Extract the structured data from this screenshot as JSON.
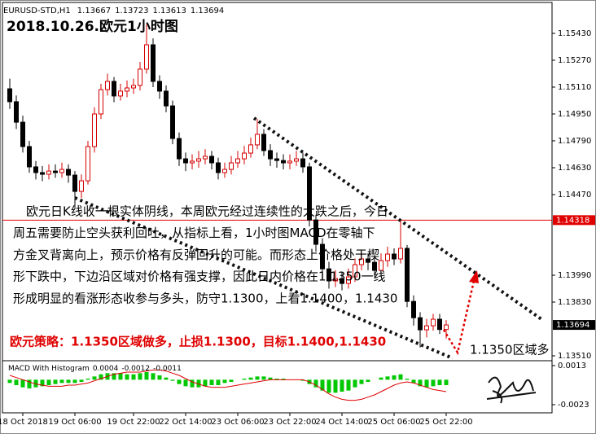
{
  "chart_data": [
    {
      "type": "candlestick",
      "symbol": "EURUSD-STD,H1",
      "title": "2018.10.26.欧元1小时图",
      "annotation_lines": [
        "欧元日K线收一根实体阴线，本周欧元经过连续性的大跌之后，今日",
        "周五需要防止空头获利回吐，从指标上看，1小时图MACD在零轴下",
        "方金叉背离向上，预示价格有反弹回升的可能。而形态上价格处于楔",
        "形下跌中，下边沿区域对价格有强支撑，因此日内价格在1.1350一线",
        "形成明显的看涨形态收参与多头，防守1.1300，上看1.1400，1.1430"
      ],
      "strategy": "欧元策略：1.1350区域做多，止损1.1300，目标1.1400,1.1430",
      "callout": "1.1350区域多",
      "up_color": "#d40000",
      "down_color": "#000000",
      "price_line": {
        "value": 1.14318,
        "color": "#e00000"
      },
      "ylim": [
        1.13481,
        1.15614
      ],
      "yticks": [
        {
          "value": 1.1543,
          "label": "1.15430"
        },
        {
          "value": 1.1527,
          "label": "1.15270"
        },
        {
          "value": 1.1511,
          "label": "1.15110"
        },
        {
          "value": 1.1495,
          "label": "1.14950"
        },
        {
          "value": 1.1479,
          "label": "1.14790"
        },
        {
          "value": 1.1463,
          "label": "1.14630"
        },
        {
          "value": 1.1447,
          "label": "1.14470"
        },
        {
          "value": 1.1399,
          "label": "1.13990"
        },
        {
          "value": 1.1383,
          "label": "1.13830"
        },
        {
          "value": 1.1351,
          "label": "1.13510"
        }
      ],
      "categories": [
        null,
        null,
        "18 Oct 2018",
        null,
        null,
        null,
        null,
        null,
        null,
        null,
        "19 Oct 06:00",
        null,
        null,
        null,
        null,
        null,
        null,
        null,
        null,
        "19 Oct 22:00",
        null,
        null,
        null,
        null,
        null,
        null,
        null,
        "22 Oct 14:00",
        null,
        null,
        null,
        null,
        null,
        null,
        null,
        "23 Oct 06:00",
        null,
        null,
        null,
        null,
        null,
        null,
        null,
        "23 Oct 22:00",
        null,
        null,
        null,
        null,
        null,
        null,
        null,
        "24 Oct 14:00",
        null,
        null,
        null,
        null,
        null,
        null,
        null,
        "25 Oct 06:00",
        null,
        null,
        null,
        null,
        null,
        null,
        null,
        "25 Oct 22:00"
      ],
      "candles": [
        [
          1.151,
          1.1516,
          1.1498,
          1.15023
        ],
        [
          1.15023,
          1.1506,
          1.1486,
          1.14901
        ],
        [
          1.14901,
          1.1494,
          1.1472,
          1.14756
        ],
        [
          1.14756,
          1.1479,
          1.146,
          1.14635
        ],
        [
          1.14635,
          1.1467,
          1.1456,
          1.14601
        ],
        [
          1.14601,
          1.1464,
          1.1455,
          1.14591
        ],
        [
          1.14591,
          1.1465,
          1.1456,
          1.1461
        ],
        [
          1.1461,
          1.1465,
          1.1457,
          1.14601
        ],
        [
          1.14601,
          1.1466,
          1.1457,
          1.1462
        ],
        [
          1.1462,
          1.1465,
          1.1454,
          1.14586
        ],
        [
          1.14586,
          1.1461,
          1.14392,
          1.14489
        ],
        [
          1.14489,
          1.1459,
          1.1445,
          1.14552
        ],
        [
          1.14552,
          1.1479,
          1.1453,
          1.14756
        ],
        [
          1.14756,
          1.1499,
          1.1472,
          1.1495
        ],
        [
          1.1495,
          1.1513,
          1.1492,
          1.15095
        ],
        [
          1.15095,
          1.1519,
          1.1506,
          1.15144
        ],
        [
          1.15144,
          1.1517,
          1.1502,
          1.15057
        ],
        [
          1.15057,
          1.1513,
          1.1503,
          1.15086
        ],
        [
          1.15086,
          1.1515,
          1.1505,
          1.15105
        ],
        [
          1.15105,
          1.1516,
          1.1507,
          1.1512
        ],
        [
          1.1512,
          1.1526,
          1.1509,
          1.15217
        ],
        [
          1.15217,
          1.15483,
          1.1519,
          1.15362
        ],
        [
          1.15362,
          1.154,
          1.1511,
          1.15144
        ],
        [
          1.15144,
          1.1518,
          1.1504,
          1.15086
        ],
        [
          1.15086,
          1.1512,
          1.1496,
          1.14998
        ],
        [
          1.14998,
          1.1503,
          1.1477,
          1.14804
        ],
        [
          1.14804,
          1.1484,
          1.1464,
          1.14683
        ],
        [
          1.14683,
          1.1472,
          1.1461,
          1.14659
        ],
        [
          1.14659,
          1.1471,
          1.1462,
          1.14669
        ],
        [
          1.14669,
          1.1473,
          1.1463,
          1.14683
        ],
        [
          1.14683,
          1.1474,
          1.1465,
          1.14698
        ],
        [
          1.14698,
          1.1473,
          1.1462,
          1.14659
        ],
        [
          1.14659,
          1.1469,
          1.1456,
          1.14601
        ],
        [
          1.14601,
          1.1466,
          1.1457,
          1.1462
        ],
        [
          1.1462,
          1.147,
          1.1459,
          1.14659
        ],
        [
          1.14659,
          1.1473,
          1.1463,
          1.14683
        ],
        [
          1.14683,
          1.1476,
          1.1465,
          1.14717
        ],
        [
          1.14717,
          1.1481,
          1.1469,
          1.14766
        ],
        [
          1.14766,
          1.1492,
          1.1474,
          1.14829
        ],
        [
          1.14829,
          1.1486,
          1.147,
          1.14732
        ],
        [
          1.14732,
          1.1477,
          1.1464,
          1.14683
        ],
        [
          1.14683,
          1.1472,
          1.1463,
          1.14673
        ],
        [
          1.14673,
          1.1471,
          1.1462,
          1.14659
        ],
        [
          1.14659,
          1.1471,
          1.1462,
          1.14669
        ],
        [
          1.14669,
          1.1473,
          1.1464,
          1.14683
        ],
        [
          1.14683,
          1.1472,
          1.146,
          1.14635
        ],
        [
          1.14635,
          1.1466,
          1.1428,
          1.14319
        ],
        [
          1.14319,
          1.1435,
          1.1413,
          1.14174
        ],
        [
          1.14174,
          1.1421,
          1.1399,
          1.14028
        ],
        [
          1.14028,
          1.1407,
          1.1391,
          1.13956
        ],
        [
          1.13956,
          1.1402,
          1.1392,
          1.1397
        ],
        [
          1.1397,
          1.1401,
          1.139,
          1.13941
        ],
        [
          1.13941,
          1.1403,
          1.1391,
          1.1398
        ],
        [
          1.1398,
          1.1409,
          1.1395,
          1.14053
        ],
        [
          1.14053,
          1.1413,
          1.1402,
          1.14087
        ],
        [
          1.14087,
          1.1412,
          1.1402,
          1.14067
        ],
        [
          1.14067,
          1.141,
          1.1398,
          1.14019
        ],
        [
          1.14019,
          1.1412,
          1.1399,
          1.14077
        ],
        [
          1.14077,
          1.1416,
          1.1404,
          1.14116
        ],
        [
          1.14116,
          1.1415,
          1.1405,
          1.14087
        ],
        [
          1.14087,
          1.14319,
          1.1406,
          1.1415
        ],
        [
          1.1415,
          1.1417,
          1.138,
          1.13834
        ],
        [
          1.13834,
          1.1387,
          1.1369,
          1.13737
        ],
        [
          1.13737,
          1.1377,
          1.1356,
          1.13665
        ],
        [
          1.13665,
          1.1373,
          1.1362,
          1.13689
        ],
        [
          1.13689,
          1.1376,
          1.1366,
          1.13728
        ],
        [
          1.13728,
          1.1376,
          1.1364,
          1.13667
        ],
        [
          1.13667,
          1.13723,
          1.13613,
          1.13694
        ]
      ]
    },
    {
      "type": "macd",
      "label": "MACD With Histogram",
      "indicator_values": [
        0.0004,
        -0.0012,
        -0.0011
      ],
      "ylim": [
        -0.0029,
        0.0016
      ],
      "yticks": [
        0.0013,
        -0.0023
      ],
      "histogram": {
        "color": "#00c800",
        "values": [
          -0.0003,
          -0.0005,
          -0.0007,
          -0.0008,
          -0.0007,
          -0.0006,
          -0.0005,
          -0.0004,
          -0.0003,
          -0.0003,
          -0.0003,
          -0.0002,
          0.0001,
          0.0003,
          0.0005,
          0.0006,
          0.0006,
          0.0006,
          0.0005,
          0.0005,
          0.0006,
          0.0007,
          0.0006,
          0.0004,
          0.0002,
          -0.0001,
          -0.0004,
          -0.0006,
          -0.0007,
          -0.0007,
          -0.0006,
          -0.0005,
          -0.0005,
          -0.0003,
          -0.0002,
          0,
          0.0001,
          0.0002,
          0.0003,
          0.0003,
          0.0002,
          0.0001,
          0.0001,
          0,
          0,
          -0.0001,
          -0.0004,
          -0.0007,
          -0.001,
          -0.0012,
          -0.0012,
          -0.0011,
          -0.001,
          -0.0007,
          -0.0004,
          -0.0002,
          0,
          0.0002,
          0.0003,
          0.0004,
          0.0005,
          0.0001,
          -0.0003,
          -0.0006,
          -0.0007,
          -0.0006,
          -0.0005,
          -0.0005
        ]
      },
      "signal": {
        "color": "#e00000",
        "values": [
          0.0004,
          0.0002,
          0,
          -0.0002,
          -0.0004,
          -0.0005,
          -0.0006,
          -0.0006,
          -0.0006,
          -0.0005,
          -0.0005,
          -0.0004,
          -0.0003,
          -0.0001,
          0.0001,
          0.0003,
          0.0005,
          0.0006,
          0.0007,
          0.0007,
          0.0007,
          0.0008,
          0.0009,
          0.0009,
          0.0008,
          0.0006,
          0.0004,
          0.0001,
          -0.0002,
          -0.0004,
          -0.0006,
          -0.0007,
          -0.0007,
          -0.0007,
          -0.0006,
          -0.0005,
          -0.0004,
          -0.0003,
          -0.0002,
          -0.0001,
          0,
          0,
          0,
          0,
          0,
          0,
          -0.0002,
          -0.0005,
          -0.0009,
          -0.0013,
          -0.0016,
          -0.0018,
          -0.0019,
          -0.0019,
          -0.0018,
          -0.0016,
          -0.0014,
          -0.0011,
          -0.0008,
          -0.0005,
          -0.0003,
          -0.0002,
          -0.0003,
          -0.0005,
          -0.0007,
          -0.0009,
          -0.001,
          -0.0011
        ]
      }
    }
  ]
}
